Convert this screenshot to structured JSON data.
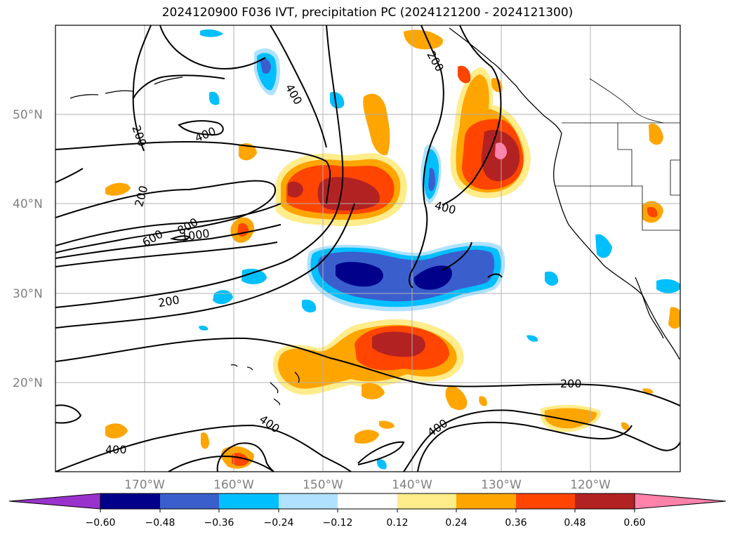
{
  "title": "2024120900 F036 IVT, precipitation PC (2024121200 - 2024121300)",
  "lat_labels": [
    "50°N",
    "40°N",
    "30°N",
    "20°N"
  ],
  "lon_labels": [
    "170°W",
    "160°W",
    "150°W",
    "140°W",
    "130°W",
    "120°W"
  ],
  "colorbar": {
    "ticks": [
      "−0.60",
      "−0.48",
      "−0.36",
      "−0.24",
      "−0.12",
      "0.12",
      "0.24",
      "0.36",
      "0.48",
      "0.60"
    ],
    "colors": [
      "#9932cc",
      "#00008b",
      "#3a5fcd",
      "#00bfff",
      "#b0e2ff",
      "#ffffff",
      "#ffec8b",
      "#ffa500",
      "#ff4500",
      "#b22222",
      "#ff82ab"
    ]
  },
  "contour_labels": {
    "c200_a": "200",
    "c200_b": "200",
    "c200_c": "200",
    "c200_d": "200",
    "c200_e": "200",
    "c400_a": "400",
    "c400_b": "400",
    "c400_c": "400",
    "c400_d": "400",
    "c400_e": "400",
    "c400_f": "400",
    "c600": "600",
    "c800": "800",
    "c1000": "1000"
  }
}
